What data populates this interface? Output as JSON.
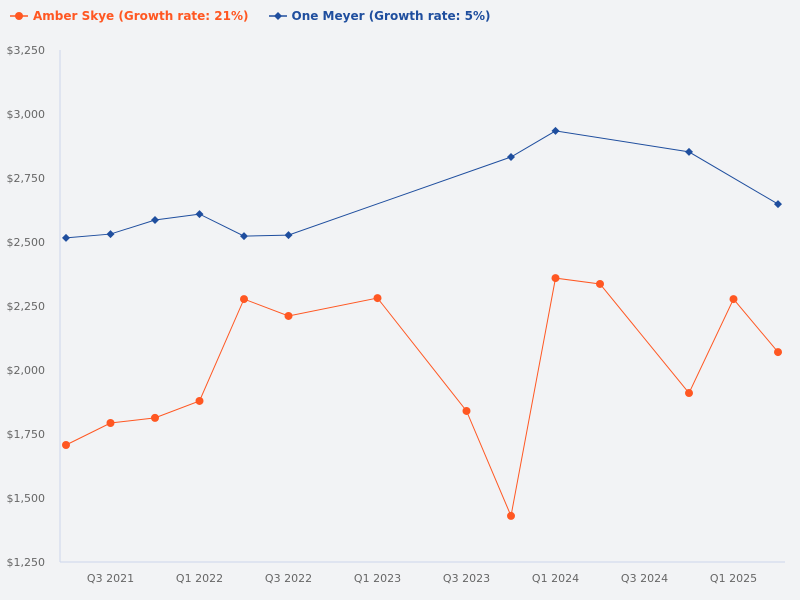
{
  "chart_data": {
    "type": "line",
    "title": "",
    "xlabel": "",
    "ylabel": "",
    "ylim": [
      1250,
      3250
    ],
    "yticks": [
      "$1,250",
      "$1,500",
      "$1,750",
      "$2,000",
      "$2,250",
      "$2,500",
      "$2,750",
      "$3,000",
      "$3,250"
    ],
    "ytick_values": [
      1250,
      1500,
      1750,
      2000,
      2250,
      2500,
      2750,
      3000,
      3250
    ],
    "quarters": [
      "Q2 2021",
      "Q3 2021",
      "Q4 2021",
      "Q1 2022",
      "Q2 2022",
      "Q3 2022",
      "Q4 2022",
      "Q1 2023",
      "Q2 2023",
      "Q3 2023",
      "Q4 2023",
      "Q1 2024",
      "Q2 2024",
      "Q3 2024",
      "Q4 2024",
      "Q1 2025",
      "Q2 2025"
    ],
    "xticks": [
      "Q3 2021",
      "Q1 2022",
      "Q3 2022",
      "Q1 2023",
      "Q3 2023",
      "Q1 2024",
      "Q3 2024",
      "Q1 2025"
    ],
    "grid": false,
    "legend_position": "top-left",
    "series": [
      {
        "name": "Amber Skye (Growth rate: 21%)",
        "color": "#ff5722",
        "marker": "circle",
        "x": [
          "Q2 2021",
          "Q3 2021",
          "Q4 2021",
          "Q1 2022",
          "Q2 2022",
          "Q3 2022",
          "Q1 2023",
          "Q3 2023",
          "Q4 2023",
          "Q1 2024",
          "Q2 2024",
          "Q4 2024",
          "Q1 2025",
          "Q2 2025"
        ],
        "values": [
          1707,
          1793,
          1813,
          1879,
          2277,
          2211,
          2281,
          1840,
          1430,
          2359,
          2336,
          1910,
          2277,
          2070
        ]
      },
      {
        "name": "One Meyer (Growth rate: 5%)",
        "color": "#1f4e9e",
        "marker": "diamond",
        "x": [
          "Q2 2021",
          "Q3 2021",
          "Q4 2021",
          "Q1 2022",
          "Q2 2022",
          "Q3 2022",
          "Q4 2023",
          "Q1 2024",
          "Q4 2024",
          "Q2 2025"
        ],
        "values": [
          2516,
          2531,
          2586,
          2609,
          2523,
          2527,
          2832,
          2934,
          2852,
          2648
        ]
      }
    ]
  }
}
